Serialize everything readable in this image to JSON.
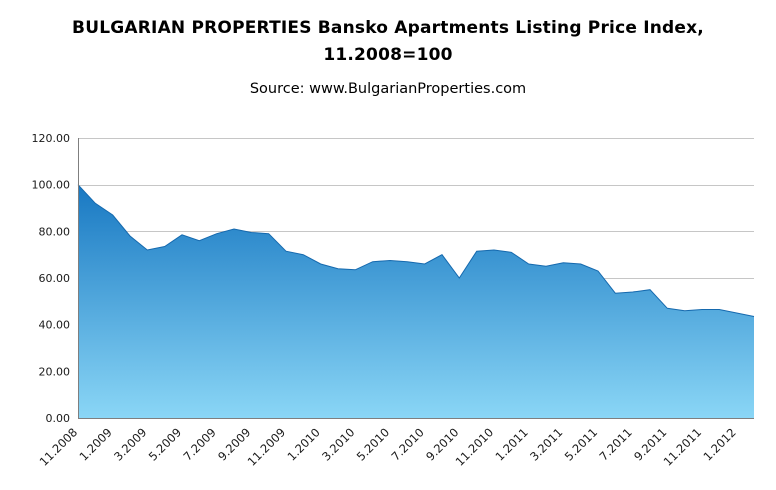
{
  "header": {
    "title_line1": "BULGARIAN PROPERTIES Bansko Apartments Listing Price Index,",
    "title_line2": "11.2008=100",
    "source": "Source: www.BulgarianProperties.com"
  },
  "chart_data": {
    "type": "area",
    "title": "BULGARIAN PROPERTIES Bansko Apartments Listing Price Index, 11.2008=100",
    "subtitle": "Source: www.BulgarianProperties.com",
    "xlabel": "",
    "ylabel": "",
    "ylim": [
      0,
      120
    ],
    "ytick_step": 20,
    "ytick_format_decimals": 2,
    "grid": true,
    "legend": "none",
    "x": [
      "11.2008",
      "12.2008",
      "1.2009",
      "2.2009",
      "3.2009",
      "4.2009",
      "5.2009",
      "6.2009",
      "7.2009",
      "8.2009",
      "9.2009",
      "10.2009",
      "11.2009",
      "12.2009",
      "1.2010",
      "2.2010",
      "3.2010",
      "4.2010",
      "5.2010",
      "6.2010",
      "7.2010",
      "8.2010",
      "9.2010",
      "10.2010",
      "11.2010",
      "12.2010",
      "1.2011",
      "2.2011",
      "3.2011",
      "4.2011",
      "5.2011",
      "6.2011",
      "7.2011",
      "8.2011",
      "9.2011",
      "10.2011",
      "11.2011",
      "12.2011",
      "1.2012",
      "2.2012"
    ],
    "values": [
      100,
      92,
      87,
      78,
      72,
      73.5,
      78.5,
      76,
      79,
      81,
      79.5,
      79,
      71.5,
      70,
      66,
      64,
      63.5,
      67,
      67.5,
      67,
      66,
      70,
      60,
      71.5,
      72,
      71,
      66,
      65,
      66.5,
      66,
      63,
      53.5,
      54,
      55,
      47,
      46,
      46.5,
      46.5,
      45,
      43.5
    ],
    "xtick_labels": [
      "11.2008",
      "1.2009",
      "3.2009",
      "5.2009",
      "7.2009",
      "9.2009",
      "11.2009",
      "1.2010",
      "3.2010",
      "5.2010",
      "7.2010",
      "9.2010",
      "11.2010",
      "1.2011",
      "3.2011",
      "5.2011",
      "7.2011",
      "9.2011",
      "11.2011",
      "1.2012"
    ],
    "colors": {
      "area_top": "#1878c2",
      "area_bottom": "#8ad6f6",
      "area_edge": "#1569ae",
      "gridline": "#c6c6c6",
      "axis": "#7f7f7f",
      "tick_text": "#1a1a1a"
    }
  }
}
